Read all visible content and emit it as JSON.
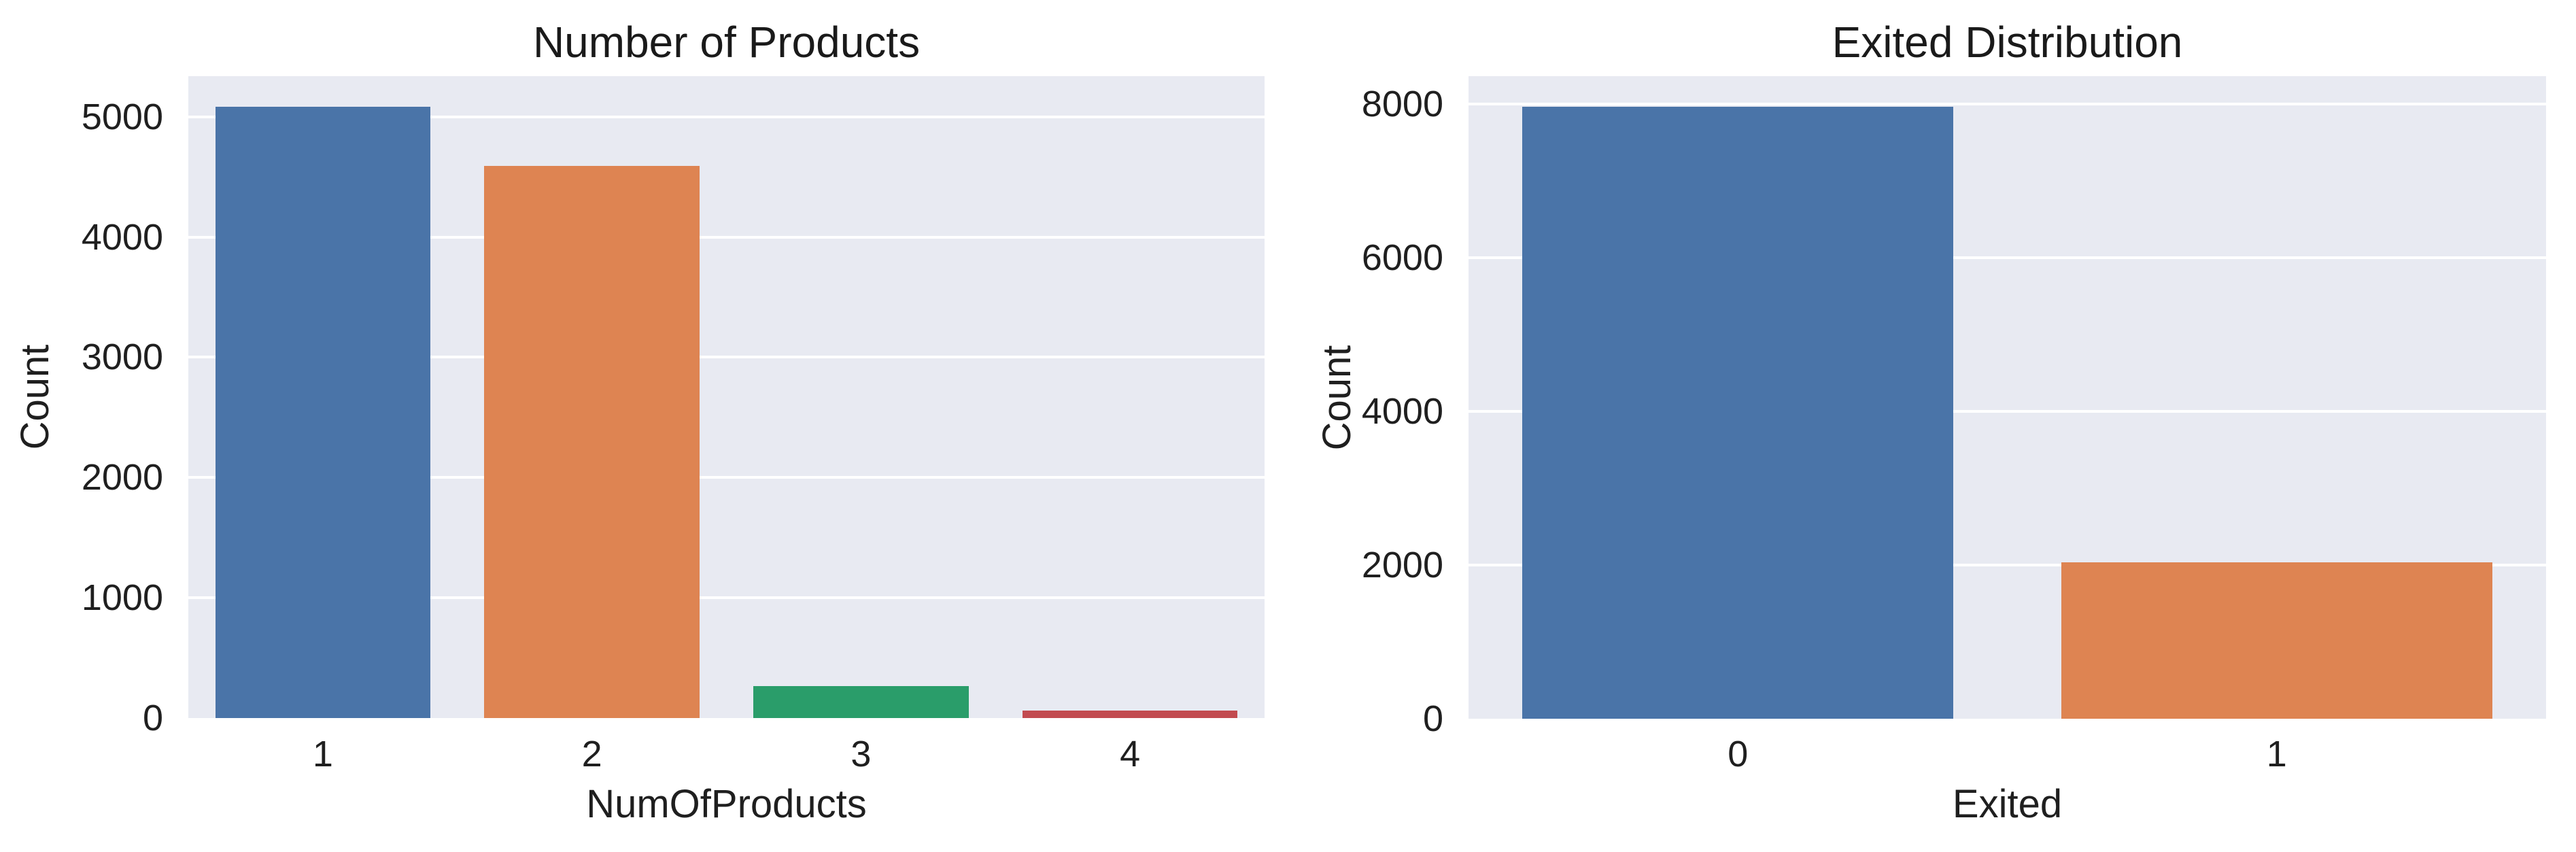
{
  "figure": {
    "background": "#ffffff",
    "plot_background": "#e8eaf2",
    "grid_color": "#ffffff",
    "text_color": "#1f1f1f"
  },
  "chart_data": [
    {
      "type": "bar",
      "title": "Number of Products",
      "xlabel": "NumOfProducts",
      "ylabel": "Count",
      "categories": [
        "1",
        "2",
        "3",
        "4"
      ],
      "values": [
        5084,
        4590,
        266,
        60
      ],
      "bar_colors": [
        "#4a74a8",
        "#de8452",
        "#2a9d6a",
        "#c24b50"
      ],
      "yticks": [
        0,
        1000,
        2000,
        3000,
        4000,
        5000
      ],
      "ylim": [
        0,
        5338
      ],
      "grid": true,
      "legend": "none"
    },
    {
      "type": "bar",
      "title": "Exited Distribution",
      "xlabel": "Exited",
      "ylabel": "Count",
      "categories": [
        "0",
        "1"
      ],
      "values": [
        7963,
        2037
      ],
      "bar_colors": [
        "#4a74a8",
        "#de8452"
      ],
      "yticks": [
        0,
        2000,
        4000,
        6000,
        8000
      ],
      "ylim": [
        0,
        8361
      ],
      "grid": true,
      "legend": "none"
    }
  ]
}
